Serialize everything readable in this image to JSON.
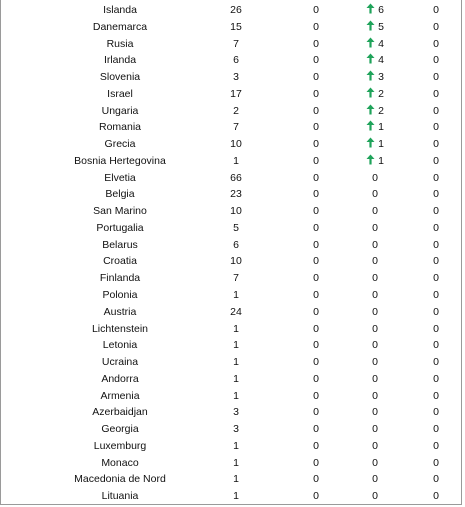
{
  "colors": {
    "arrow": "#1fa35a",
    "border": "#9a9a9a"
  },
  "rows": [
    {
      "country": "Islanda",
      "v1": "26",
      "v2": "0",
      "v3": "6",
      "up": true,
      "v4": "0"
    },
    {
      "country": "Danemarca",
      "v1": "15",
      "v2": "0",
      "v3": "5",
      "up": true,
      "v4": "0"
    },
    {
      "country": "Rusia",
      "v1": "7",
      "v2": "0",
      "v3": "4",
      "up": true,
      "v4": "0"
    },
    {
      "country": "Irlanda",
      "v1": "6",
      "v2": "0",
      "v3": "4",
      "up": true,
      "v4": "0"
    },
    {
      "country": "Slovenia",
      "v1": "3",
      "v2": "0",
      "v3": "3",
      "up": true,
      "v4": "0"
    },
    {
      "country": "Israel",
      "v1": "17",
      "v2": "0",
      "v3": "2",
      "up": true,
      "v4": "0"
    },
    {
      "country": "Ungaria",
      "v1": "2",
      "v2": "0",
      "v3": "2",
      "up": true,
      "v4": "0"
    },
    {
      "country": "Romania",
      "v1": "7",
      "v2": "0",
      "v3": "1",
      "up": true,
      "v4": "0"
    },
    {
      "country": "Grecia",
      "v1": "10",
      "v2": "0",
      "v3": "1",
      "up": true,
      "v4": "0"
    },
    {
      "country": "Bosnia Hertegovina",
      "v1": "1",
      "v2": "0",
      "v3": "1",
      "up": true,
      "v4": "0"
    },
    {
      "country": "Elvetia",
      "v1": "66",
      "v2": "0",
      "v3": "0",
      "up": false,
      "v4": "0"
    },
    {
      "country": "Belgia",
      "v1": "23",
      "v2": "0",
      "v3": "0",
      "up": false,
      "v4": "0"
    },
    {
      "country": "San Marino",
      "v1": "10",
      "v2": "0",
      "v3": "0",
      "up": false,
      "v4": "0"
    },
    {
      "country": "Portugalia",
      "v1": "5",
      "v2": "0",
      "v3": "0",
      "up": false,
      "v4": "0"
    },
    {
      "country": "Belarus",
      "v1": "6",
      "v2": "0",
      "v3": "0",
      "up": false,
      "v4": "0"
    },
    {
      "country": "Croatia",
      "v1": "10",
      "v2": "0",
      "v3": "0",
      "up": false,
      "v4": "0"
    },
    {
      "country": "Finlanda",
      "v1": "7",
      "v2": "0",
      "v3": "0",
      "up": false,
      "v4": "0"
    },
    {
      "country": "Polonia",
      "v1": "1",
      "v2": "0",
      "v3": "0",
      "up": false,
      "v4": "0"
    },
    {
      "country": "Austria",
      "v1": "24",
      "v2": "0",
      "v3": "0",
      "up": false,
      "v4": "0"
    },
    {
      "country": "Lichtenstein",
      "v1": "1",
      "v2": "0",
      "v3": "0",
      "up": false,
      "v4": "0"
    },
    {
      "country": "Letonia",
      "v1": "1",
      "v2": "0",
      "v3": "0",
      "up": false,
      "v4": "0"
    },
    {
      "country": "Ucraina",
      "v1": "1",
      "v2": "0",
      "v3": "0",
      "up": false,
      "v4": "0"
    },
    {
      "country": "Andorra",
      "v1": "1",
      "v2": "0",
      "v3": "0",
      "up": false,
      "v4": "0"
    },
    {
      "country": "Armenia",
      "v1": "1",
      "v2": "0",
      "v3": "0",
      "up": false,
      "v4": "0"
    },
    {
      "country": "Azerbaidjan",
      "v1": "3",
      "v2": "0",
      "v3": "0",
      "up": false,
      "v4": "0"
    },
    {
      "country": "Georgia",
      "v1": "3",
      "v2": "0",
      "v3": "0",
      "up": false,
      "v4": "0"
    },
    {
      "country": "Luxemburg",
      "v1": "1",
      "v2": "0",
      "v3": "0",
      "up": false,
      "v4": "0"
    },
    {
      "country": "Monaco",
      "v1": "1",
      "v2": "0",
      "v3": "0",
      "up": false,
      "v4": "0"
    },
    {
      "country": "Macedonia de Nord",
      "v1": "1",
      "v2": "0",
      "v3": "0",
      "up": false,
      "v4": "0"
    },
    {
      "country": "Lituania",
      "v1": "1",
      "v2": "0",
      "v3": "0",
      "up": false,
      "v4": "0"
    }
  ]
}
